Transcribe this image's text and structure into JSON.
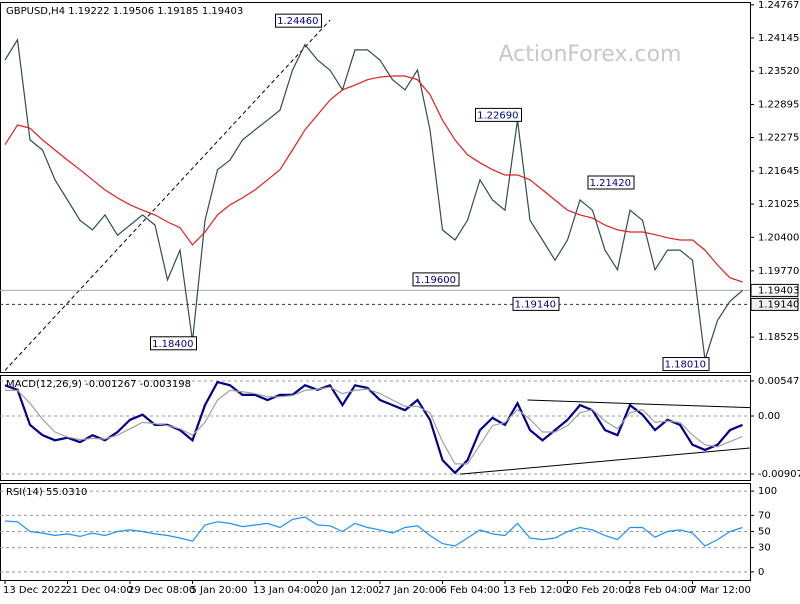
{
  "chart_data": [
    {
      "type": "line",
      "title": "GBPUSD,H4  1.19222 1.19506 1.19185 1.19403",
      "watermark": "ActionForex.com",
      "ylim": [
        1.1787,
        1.2482
      ],
      "yticks": [
        1.24767,
        1.24145,
        {
          "value": 1.2352,
          "label": "1.23520"
        },
        1.22895,
        1.22275,
        1.21645,
        1.21025,
        {
          "value": 1.204,
          "label": "1.20400"
        },
        {
          "value": 1.1977,
          "label": "1.19770"
        },
        1.18525
      ],
      "grid": false,
      "series": [
        {
          "name": "GBPUSD",
          "color": "#2f4f4f",
          "values": [
            1.2373,
            1.2411,
            1.2223,
            1.2204,
            1.2148,
            1.211,
            1.2072,
            1.2054,
            1.2082,
            1.2044,
            1.2063,
            1.2082,
            1.2063,
            1.196,
            1.2016,
            1.1845,
            1.2072,
            1.2167,
            1.2185,
            1.2223,
            1.2242,
            1.226,
            1.2279,
            1.2354,
            1.2402,
            1.2373,
            1.2354,
            1.2317,
            1.2392,
            1.2392,
            1.2373,
            1.2336,
            1.2317,
            1.2354,
            1.2242,
            1.2054,
            1.2035,
            1.2072,
            1.2148,
            1.211,
            1.2091,
            1.226,
            1.2072,
            1.2035,
            1.1997,
            1.2035,
            1.211,
            1.2091,
            1.2016,
            1.1979,
            1.2091,
            1.2072,
            1.1979,
            1.2016,
            1.2016,
            1.1997,
            1.181,
            1.1884,
            1.192,
            1.194
          ]
        },
        {
          "name": "MA",
          "color": "#e02020",
          "values": [
            1.2214,
            1.2251,
            1.2245,
            1.2223,
            1.2204,
            1.2185,
            1.2167,
            1.2148,
            1.2129,
            1.2114,
            1.2101,
            1.2091,
            1.2082,
            1.2069,
            1.2058,
            1.2026,
            1.205,
            1.2082,
            1.2101,
            1.2114,
            1.2129,
            1.2148,
            1.2167,
            1.2204,
            1.2242,
            1.227,
            1.2298,
            1.2317,
            1.2326,
            1.2336,
            1.2341,
            1.2343,
            1.2343,
            1.2336,
            1.2308,
            1.226,
            1.2223,
            1.2195,
            1.218,
            1.2167,
            1.2157,
            1.2157,
            1.2148,
            1.2129,
            1.211,
            1.2091,
            1.2082,
            1.2076,
            1.2063,
            1.2054,
            1.205,
            1.205,
            1.2045,
            1.2039,
            1.2035,
            1.2035,
            1.2016,
            1.1988,
            1.1964,
            1.1956
          ]
        }
      ],
      "hlines": [
        {
          "value": 1.19403,
          "label": "1.19403"
        },
        {
          "value": 1.1914,
          "label": "1.19140"
        }
      ],
      "annotations": [
        {
          "x": 25,
          "value": 1.2446,
          "label": "1.24460"
        },
        {
          "x": 15,
          "value": 1.184,
          "label": "1.18400"
        },
        {
          "x": 41,
          "value": 1.2269,
          "label": "1.22690"
        },
        {
          "x": 36,
          "value": 1.196,
          "label": "1.19600"
        },
        {
          "x": 50,
          "value": 1.2142,
          "label": "1.21420"
        },
        {
          "x": 44,
          "value": 1.1914,
          "label": "1.19140"
        },
        {
          "x": 56,
          "value": 1.1801,
          "label": "1.18010"
        }
      ],
      "trendlines": [
        {
          "x": [
            0,
            26
          ],
          "values": [
            1.179,
            1.2448
          ]
        }
      ]
    },
    {
      "type": "line",
      "title": "MACD(12,26,9) -0.001267 -0.003198",
      "ylim": [
        -0.01001,
        0.00641
      ],
      "yticks": [
        0.005475,
        {
          "value": 0,
          "label": "0.00"
        },
        -0.009075
      ],
      "grid": true,
      "series": [
        {
          "name": "MACD",
          "color": "#00008b",
          "values": [
            0.0048,
            0.0041,
            -0.0014,
            -0.003,
            -0.0038,
            -0.0034,
            -0.0041,
            -0.003,
            -0.0038,
            -0.0025,
            -0.0006,
            0.0002,
            -0.0014,
            -0.0014,
            -0.0022,
            -0.0038,
            0.0017,
            0.0053,
            0.0048,
            0.0033,
            0.0033,
            0.0025,
            0.0033,
            0.0033,
            0.0048,
            0.0041,
            0.0048,
            0.0017,
            0.0048,
            0.0044,
            0.0025,
            0.0017,
            0.0009,
            0.0025,
            -0.0006,
            -0.0069,
            -0.0089,
            -0.0069,
            -0.0022,
            -0.0003,
            -0.0014,
            0.002,
            -0.0022,
            -0.0038,
            -0.0022,
            -0.0006,
            0.0017,
            0.0009,
            -0.0022,
            -0.003,
            0.0017,
            0.0002,
            -0.0022,
            -0.0006,
            -0.0014,
            -0.0045,
            -0.0053,
            -0.0045,
            -0.0022,
            -0.0014
          ]
        },
        {
          "name": "Signal",
          "color": "#a0a0a0",
          "values": [
            0.004,
            0.004,
            0.002,
            -0.0005,
            -0.0025,
            -0.0033,
            -0.0037,
            -0.0035,
            -0.0036,
            -0.003,
            -0.002,
            -0.001,
            -0.0012,
            -0.0015,
            -0.002,
            -0.003,
            -0.001,
            0.0025,
            0.004,
            0.0038,
            0.0035,
            0.003,
            0.003,
            0.0032,
            0.004,
            0.0042,
            0.0045,
            0.0035,
            0.004,
            0.0042,
            0.0035,
            0.0025,
            0.0015,
            0.0015,
            0.0005,
            -0.004,
            -0.0075,
            -0.0075,
            -0.0045,
            -0.0015,
            -0.001,
            0.001,
            -0.0005,
            -0.0025,
            -0.0025,
            -0.0015,
            0.0005,
            0.001,
            -0.0008,
            -0.002,
            0.0005,
            0.001,
            -0.001,
            -0.0008,
            -0.001,
            -0.003,
            -0.0045,
            -0.0048,
            -0.004,
            -0.0032
          ]
        }
      ],
      "trendlines": [
        {
          "x": [
            41.8,
            59.6
          ],
          "values": [
            0.0025,
            0.0013
          ]
        },
        {
          "x": [
            36.4,
            59.6
          ],
          "values": [
            -0.0091,
            -0.005
          ]
        }
      ]
    },
    {
      "type": "line",
      "title": "RSI(14) 55.0310",
      "ylim": [
        -10,
        110
      ],
      "yticks": [
        100,
        70,
        50,
        30,
        0
      ],
      "grid": true,
      "categories": [
        "13 Dec 2022",
        null,
        null,
        null,
        null,
        "21 Dec 04:00",
        null,
        null,
        null,
        null,
        "29 Dec 08:00",
        null,
        null,
        null,
        null,
        "5 Jan 20:00",
        null,
        null,
        null,
        null,
        "13 Jan 04:00",
        null,
        null,
        null,
        null,
        "20 Jan 12:00",
        null,
        null,
        null,
        null,
        "27 Jan 20:00",
        null,
        null,
        null,
        null,
        "6 Feb 04:00",
        null,
        null,
        null,
        null,
        "13 Feb 12:00",
        null,
        null,
        null,
        null,
        "20 Feb 20:00",
        null,
        null,
        null,
        null,
        "28 Feb 04:00",
        null,
        null,
        null,
        null,
        "7 Mar 12:00",
        null,
        null,
        null,
        null
      ],
      "series": [
        {
          "name": "RSI",
          "color": "#1e90ff",
          "values": [
            63,
            62,
            50,
            48,
            45,
            47,
            44,
            48,
            45,
            50,
            52,
            50,
            47,
            45,
            42,
            38,
            58,
            62,
            60,
            56,
            58,
            60,
            55,
            65,
            68,
            58,
            57,
            50,
            60,
            55,
            52,
            48,
            55,
            57,
            45,
            35,
            32,
            42,
            52,
            47,
            45,
            60,
            42,
            40,
            42,
            50,
            55,
            52,
            45,
            40,
            55,
            55,
            43,
            50,
            52,
            48,
            32,
            40,
            50,
            55
          ]
        }
      ]
    }
  ]
}
